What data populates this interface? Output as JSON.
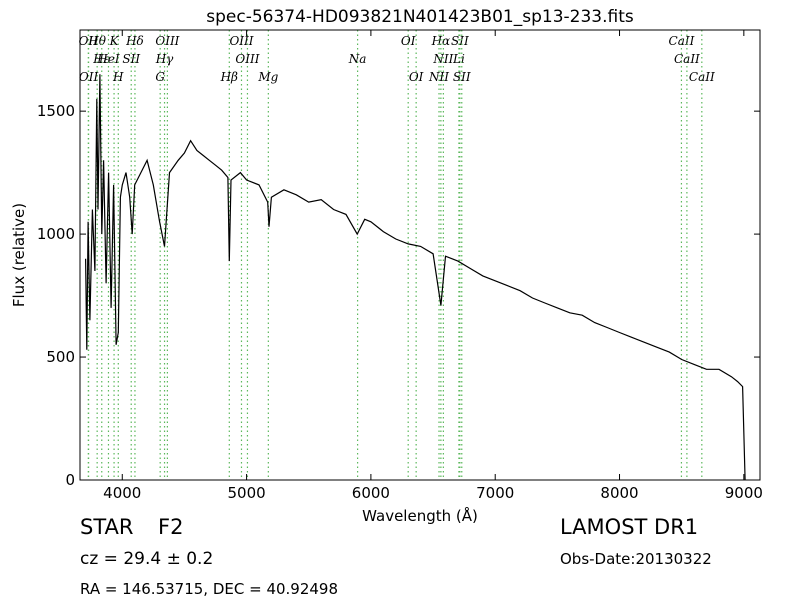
{
  "chart_data": {
    "type": "line",
    "title": "spec-56374-HD093821N401423B01_sp13-233.fits",
    "x_label": "Wavelength (Å)",
    "y_label": "Flux (relative)",
    "color": "#000000",
    "x": [
      3705,
      3715,
      3725,
      3740,
      3760,
      3780,
      3795,
      3805,
      3820,
      3835,
      3850,
      3870,
      3890,
      3910,
      3930,
      3950,
      3968,
      3985,
      4000,
      4030,
      4060,
      4080,
      4100,
      4150,
      4200,
      4250,
      4300,
      4340,
      4380,
      4450,
      4500,
      4550,
      4600,
      4650,
      4700,
      4750,
      4800,
      4850,
      4861,
      4875,
      4950,
      5000,
      5100,
      5170,
      5180,
      5200,
      5300,
      5400,
      5500,
      5600,
      5700,
      5800,
      5890,
      5950,
      6000,
      6100,
      6200,
      6300,
      6400,
      6500,
      6563,
      6600,
      6700,
      6800,
      6900,
      7000,
      7100,
      7200,
      7300,
      7400,
      7500,
      7600,
      7700,
      7800,
      7900,
      8000,
      8100,
      8200,
      8300,
      8400,
      8500,
      8600,
      8700,
      8800,
      8900,
      8950,
      8990,
      9010
    ],
    "values": [
      900,
      530,
      1050,
      650,
      1100,
      850,
      1550,
      1100,
      1650,
      1000,
      1300,
      800,
      1250,
      700,
      1200,
      550,
      600,
      1150,
      1200,
      1250,
      1150,
      1000,
      1200,
      1250,
      1300,
      1200,
      1050,
      950,
      1250,
      1300,
      1330,
      1380,
      1340,
      1320,
      1300,
      1280,
      1260,
      1230,
      890,
      1220,
      1250,
      1220,
      1200,
      1130,
      1030,
      1150,
      1180,
      1160,
      1130,
      1140,
      1100,
      1080,
      1000,
      1060,
      1050,
      1010,
      980,
      960,
      950,
      920,
      710,
      910,
      890,
      860,
      830,
      810,
      790,
      770,
      740,
      720,
      700,
      680,
      670,
      640,
      620,
      600,
      580,
      560,
      540,
      520,
      490,
      470,
      450,
      450,
      420,
      400,
      380,
      0
    ],
    "xlim": [
      3660,
      9130
    ],
    "ylim": [
      0,
      1830
    ],
    "xticks": [
      4000,
      5000,
      6000,
      7000,
      8000,
      9000
    ],
    "yticks": [
      0,
      500,
      1000,
      1500
    ],
    "line_color": "#5cb85c",
    "annotations": [
      {
        "label": "Hθ",
        "x": 3798
      },
      {
        "label": "K",
        "x": 3934
      },
      {
        "label": "Hδ",
        "x": 4102
      },
      {
        "label": "OIII",
        "x": 4363
      },
      {
        "label": "OIII",
        "x": 4959
      },
      {
        "label": "OI",
        "x": 6300
      },
      {
        "label": "Hα",
        "x": 6563
      },
      {
        "label": "SII",
        "x": 6716
      },
      {
        "label": "CaII",
        "x": 8498
      },
      {
        "label": "OII",
        "x": 3727
      },
      {
        "label": "Hε",
        "x": 3835
      },
      {
        "label": "HeI",
        "x": 3889
      },
      {
        "label": "SII",
        "x": 4072
      },
      {
        "label": "Hγ",
        "x": 4340
      },
      {
        "label": "OIII",
        "x": 5007
      },
      {
        "label": "Na",
        "x": 5893
      },
      {
        "label": "NII",
        "x": 6583
      },
      {
        "label": "Li",
        "x": 6708
      },
      {
        "label": "CaII",
        "x": 8542
      },
      {
        "label": "OII",
        "x": 3729
      },
      {
        "label": "H",
        "x": 3968
      },
      {
        "label": "G",
        "x": 4305
      },
      {
        "label": "Hβ",
        "x": 4861
      },
      {
        "label": "Mg",
        "x": 5175
      },
      {
        "label": "OI",
        "x": 6364
      },
      {
        "label": "NII",
        "x": 6548
      },
      {
        "label": "SII",
        "x": 6731
      },
      {
        "label": "CaII",
        "x": 8662
      }
    ]
  },
  "footer": {
    "class": "STAR",
    "subclass": "F2",
    "redshift": "cz = 29.4 ± 0.2",
    "coords": "RA = 146.53715, DEC = 40.92498",
    "release": "LAMOST DR1",
    "obs_date": "Obs-Date:20130322"
  }
}
